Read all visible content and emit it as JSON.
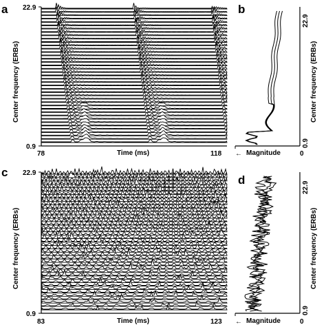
{
  "figure": {
    "panels": [
      {
        "id": "a",
        "label": "a",
        "y_top": "22.9",
        "y_bottom": "0.9",
        "x_left": "78",
        "x_right": "118",
        "xlabel": "Time (ms)",
        "ylabel": "Center frequency (ERBs)",
        "pulses": 3,
        "style": "regular"
      },
      {
        "id": "b",
        "label": "b",
        "xlabel": "Magnitude",
        "x_left": "0",
        "ylabel": "Center frequency (ERBs)",
        "y_top": "22.9",
        "y_bottom": "0.9",
        "style": "smooth"
      },
      {
        "id": "c",
        "label": "c",
        "y_top": "22.9",
        "y_bottom": "0.9",
        "x_left": "83",
        "x_right": "123",
        "xlabel": "Time (ms)",
        "ylabel": "Center frequency (ERBs)",
        "style": "noisy"
      },
      {
        "id": "d",
        "label": "d",
        "xlabel": "Magnitude",
        "x_left": "0",
        "ylabel": "Center frequency (ERBs)",
        "y_top": "22.9",
        "y_bottom": "0.9",
        "style": "noisy"
      }
    ],
    "channels": 41,
    "colors": {
      "ink": "#000000",
      "background": "#ffffff"
    }
  }
}
